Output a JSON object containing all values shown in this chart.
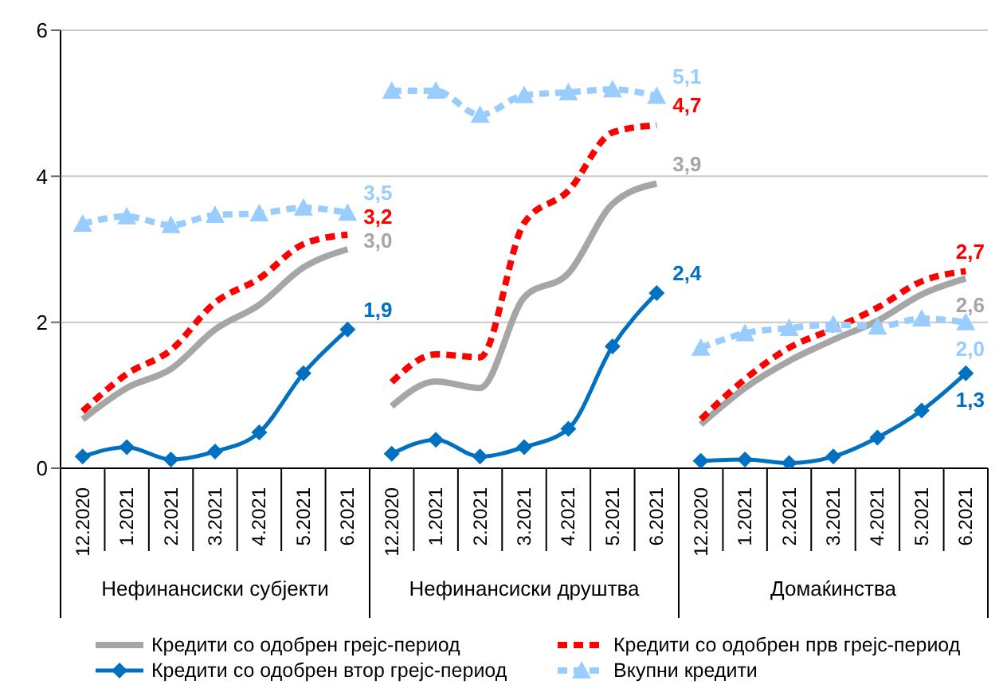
{
  "chart_data": {
    "type": "line",
    "categories": [
      "12.2020",
      "1.2021",
      "2.2021",
      "3.2021",
      "4.2021",
      "5.2021",
      "6.2021",
      "12.2020",
      "1.2021",
      "2.2021",
      "3.2021",
      "4.2021",
      "5.2021",
      "6.2021",
      "12.2020",
      "1.2021",
      "2.2021",
      "3.2021",
      "4.2021",
      "5.2021",
      "6.2021"
    ],
    "annotations": [
      "Нефинансиски субјекти",
      "Нефинансиски друштва",
      "Домаќинства"
    ],
    "ylim": [
      0,
      6
    ],
    "yticks": [
      0,
      2,
      4,
      6
    ],
    "grid": "y",
    "legend": "bottom",
    "series": [
      {
        "name": "Кредити со одобрен грејс-период",
        "color": "#a6a6a6",
        "line_style": "solid",
        "marker": "none",
        "values": [
          0.67,
          1.1,
          1.36,
          1.9,
          2.24,
          2.75,
          3.0,
          0.85,
          1.19,
          1.1,
          2.34,
          2.67,
          3.62,
          3.9,
          0.6,
          1.1,
          1.47,
          1.76,
          2.02,
          2.38,
          2.6
        ],
        "value_labels": [
          null,
          null,
          null,
          null,
          null,
          null,
          "3,0",
          null,
          null,
          null,
          null,
          null,
          null,
          "3,9",
          null,
          null,
          null,
          null,
          null,
          null,
          "2,6"
        ]
      },
      {
        "name": "Кредити со одобрен прв грејс-период",
        "color": "#ff0000",
        "line_style": "dashed",
        "marker": "none",
        "values": [
          0.78,
          1.29,
          1.62,
          2.27,
          2.6,
          3.07,
          3.2,
          1.18,
          1.56,
          1.52,
          3.36,
          3.8,
          4.6,
          4.7,
          0.67,
          1.22,
          1.65,
          1.91,
          2.2,
          2.56,
          2.7
        ],
        "value_labels": [
          null,
          null,
          null,
          null,
          null,
          null,
          "3,2",
          null,
          null,
          null,
          null,
          null,
          null,
          "4,7",
          null,
          null,
          null,
          null,
          null,
          null,
          "2,7"
        ]
      },
      {
        "name": "Кредити со одобрен втор грејс-период",
        "color": "#0070c0",
        "line_style": "solid",
        "marker": "diamond",
        "values": [
          0.16,
          0.29,
          0.12,
          0.23,
          0.49,
          1.3,
          1.9,
          0.2,
          0.39,
          0.16,
          0.29,
          0.54,
          1.67,
          2.4,
          0.1,
          0.12,
          0.07,
          0.16,
          0.42,
          0.79,
          1.3
        ],
        "value_labels": [
          null,
          null,
          null,
          null,
          null,
          null,
          "1,9",
          null,
          null,
          null,
          null,
          null,
          null,
          "2,4",
          null,
          null,
          null,
          null,
          null,
          null,
          "1,3"
        ]
      },
      {
        "name": "Вкупни кредити",
        "color": "#99ccff",
        "line_style": "dashed",
        "marker": "triangle",
        "values": [
          3.35,
          3.45,
          3.33,
          3.47,
          3.49,
          3.57,
          3.5,
          5.17,
          5.17,
          4.84,
          5.11,
          5.15,
          5.19,
          5.1,
          1.65,
          1.85,
          1.92,
          1.97,
          1.94,
          2.05,
          2.0
        ],
        "value_labels": [
          null,
          null,
          null,
          null,
          null,
          null,
          "3,5",
          null,
          null,
          null,
          null,
          null,
          null,
          "5,1",
          null,
          null,
          null,
          null,
          null,
          null,
          "2,0"
        ]
      }
    ]
  }
}
